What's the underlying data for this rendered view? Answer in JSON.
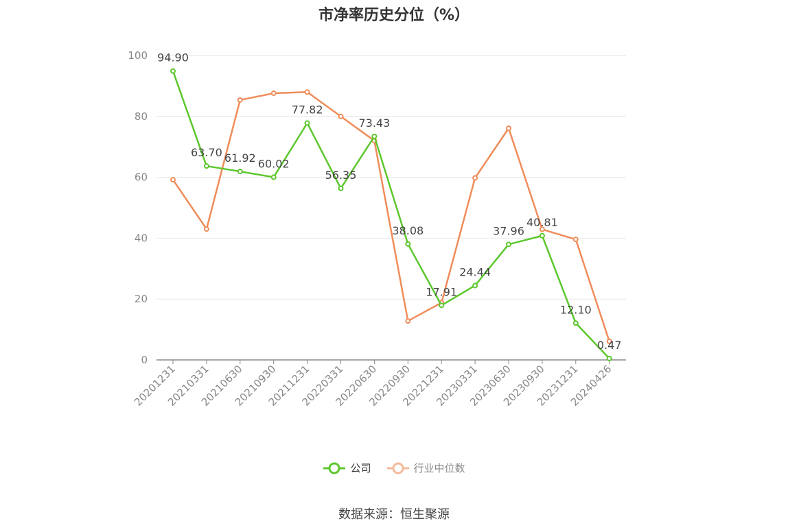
{
  "title": "市净率历史分位（%）",
  "source": "数据来源：恒生聚源",
  "chart_data": {
    "type": "line",
    "title": "市净率历史分位（%）",
    "categories": [
      "20201231",
      "20210331",
      "20210630",
      "20210930",
      "20211231",
      "20220331",
      "20220630",
      "20220930",
      "20221231",
      "20230331",
      "20230630",
      "20230930",
      "20231231",
      "20240426"
    ],
    "ylim": [
      0,
      100
    ],
    "yticks": [
      0,
      20,
      40,
      60,
      80,
      100
    ],
    "grid": true,
    "legend_position": "bottom",
    "series": [
      {
        "name": "公司",
        "color": "#5cc72d",
        "values": [
          94.9,
          63.7,
          61.92,
          60.02,
          77.82,
          56.35,
          73.43,
          38.08,
          17.91,
          24.44,
          37.96,
          40.81,
          12.1,
          0.47
        ],
        "labels": [
          "94.90",
          "63.70",
          "61.92",
          "60.02",
          "77.82",
          "56.35",
          "73.43",
          "38.08",
          "17.91",
          "24.44",
          "37.96",
          "40.81",
          "12.10",
          "0.47"
        ]
      },
      {
        "name": "行业中位数",
        "color": "#f08c5a",
        "legend_color": "#f5b99c",
        "values": [
          59.2,
          43.0,
          85.4,
          87.6,
          88.0,
          80.0,
          72.0,
          12.8,
          18.8,
          59.8,
          76.1,
          42.9,
          39.6,
          6.1
        ]
      }
    ]
  }
}
